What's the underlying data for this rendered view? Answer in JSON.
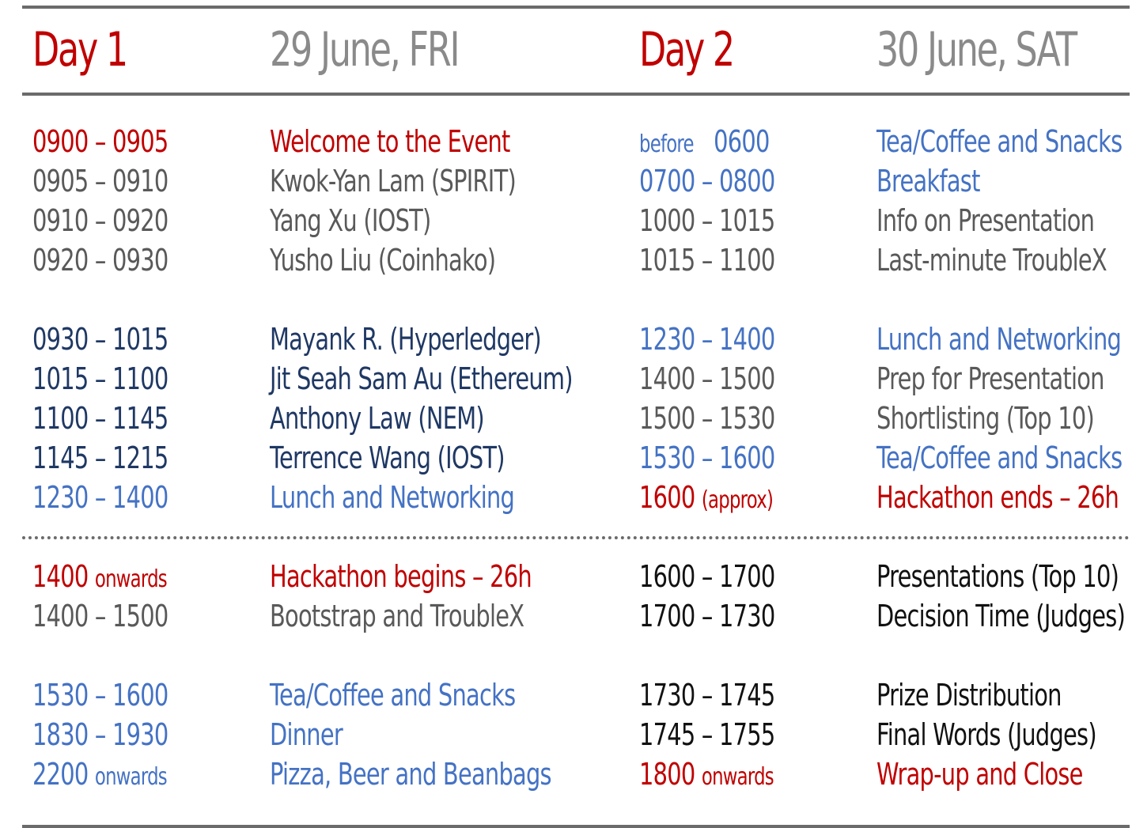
{
  "header": {
    "day1_label": "Day 1",
    "day1_date": "29 June, FRI",
    "day2_label": "Day 2",
    "day2_date": "30 June, SAT"
  },
  "colors": {
    "red": "#c00000",
    "gray": "#595959",
    "navy": "#1f3864",
    "blue": "#4472c4",
    "black": "#111111",
    "header_gray": "#8a8a8a"
  },
  "day1": [
    {
      "time": "0900 – 0905",
      "event": "Welcome to the Event",
      "color": "red"
    },
    {
      "time": "0905 – 0910",
      "event": "Kwok-Yan Lam (SPIRIT)",
      "color": "gray"
    },
    {
      "time": "0910 – 0920",
      "event": "Yang Xu (IOST)",
      "color": "gray"
    },
    {
      "time": "0920 – 0930",
      "event": "Yusho Liu (Coinhako)",
      "color": "gray"
    },
    {
      "time": "0930 – 1015",
      "event": "Mayank R. (Hyperledger)",
      "color": "navy"
    },
    {
      "time": "1015 – 1100",
      "event": "Jit Seah Sam Au (Ethereum)",
      "color": "navy"
    },
    {
      "time": "1100 – 1145",
      "event": "Anthony Law (NEM)",
      "color": "navy"
    },
    {
      "time": "1145 – 1215",
      "event": "Terrence Wang (IOST)",
      "color": "navy"
    },
    {
      "time": "1230 – 1400",
      "event": "Lunch and Networking",
      "color": "blue"
    },
    {
      "time": "1400",
      "time_suffix": "onwards",
      "event": "Hackathon begins – 26h",
      "color": "red"
    },
    {
      "time": "1400 – 1500",
      "event": "Bootstrap and TroubleX",
      "color": "gray"
    },
    {
      "time": "1530 – 1600",
      "event": "Tea/Coffee and Snacks",
      "color": "blue"
    },
    {
      "time": "1830 – 1930",
      "event": "Dinner",
      "color": "blue"
    },
    {
      "time": "2200",
      "time_suffix": "onwards",
      "event": "Pizza, Beer and Beanbags",
      "color": "blue"
    }
  ],
  "day2": [
    {
      "time_prefix": "before",
      "time": "0600",
      "event": "Tea/Coffee and Snacks",
      "color": "blue"
    },
    {
      "time": "0700 – 0800",
      "event": "Breakfast",
      "color": "blue"
    },
    {
      "time": "1000 – 1015",
      "event": "Info on Presentation",
      "color": "gray"
    },
    {
      "time": "1015 – 1100",
      "event": "Last-minute TroubleX",
      "color": "gray"
    },
    {
      "time": "1230 – 1400",
      "event": "Lunch and Networking",
      "color": "blue"
    },
    {
      "time": "1400 – 1500",
      "event": "Prep for Presentation",
      "color": "gray"
    },
    {
      "time": "1500 – 1530",
      "event": "Shortlisting (Top 10)",
      "color": "gray"
    },
    {
      "time": "1530 – 1600",
      "event": "Tea/Coffee and Snacks",
      "color": "blue"
    },
    {
      "time": "1600",
      "time_suffix": "(approx)",
      "event": "Hackathon ends – 26h",
      "color": "red"
    },
    {
      "time": "1600 – 1700",
      "event": "Presentations (Top 10)",
      "color": "black"
    },
    {
      "time": "1700 – 1730",
      "event": "Decision Time (Judges)",
      "color": "black"
    },
    {
      "time": "1730 – 1745",
      "event": "Prize Distribution",
      "color": "black"
    },
    {
      "time": "1745 – 1755",
      "event": "Final Words (Judges)",
      "color": "black"
    },
    {
      "time": "1800",
      "time_suffix": "onwards",
      "event": "Wrap-up and Close",
      "color": "red"
    }
  ]
}
